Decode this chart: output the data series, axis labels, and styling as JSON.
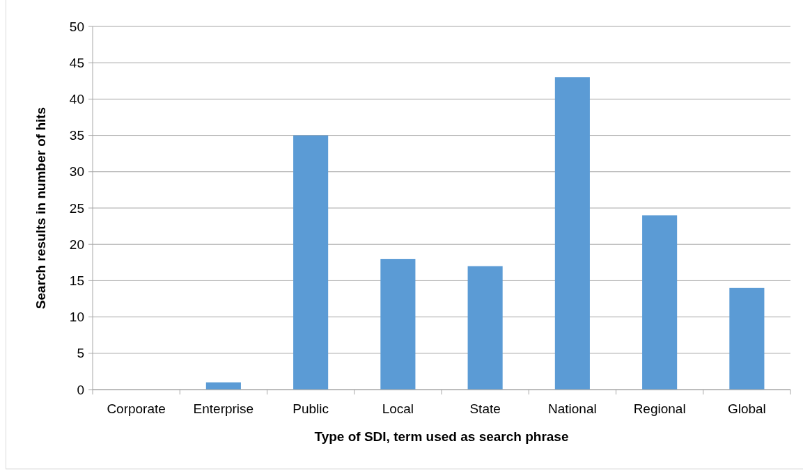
{
  "chart_data": {
    "type": "bar",
    "xlabel": "Type of SDI, term used as search phrase",
    "ylabel": "Search results in number of hits",
    "categories": [
      "Corporate",
      "Enterprise",
      "Public",
      "Local",
      "State",
      "National",
      "Regional",
      "Global"
    ],
    "values": [
      0,
      1,
      35,
      18,
      17,
      43,
      24,
      14
    ],
    "color": "#5b9bd5",
    "ylim": [
      0,
      50
    ],
    "yticks": [
      0,
      5,
      10,
      15,
      20,
      25,
      30,
      35,
      40,
      45,
      50
    ],
    "grid": "y"
  }
}
